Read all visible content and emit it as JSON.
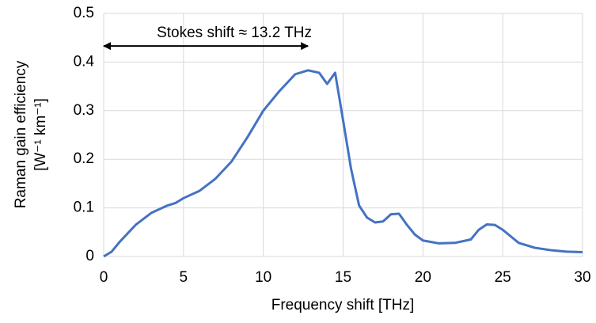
{
  "chart_data": {
    "type": "line",
    "x_label": "Frequency shift [THz]",
    "y_label": [
      "Raman gain efficiency",
      "[W⁻¹ km⁻¹]"
    ],
    "annotation": {
      "text": "Stokes shift ≈ 13.2 THz",
      "x_start": 0,
      "x_end": 12.8,
      "y": 0.433
    },
    "x": [
      0,
      0.5,
      1,
      2,
      3,
      4,
      4.5,
      5,
      6,
      7,
      8,
      9,
      10,
      11,
      12,
      12.8,
      13.5,
      14,
      14.5,
      15,
      15.5,
      16,
      16.5,
      17,
      17.5,
      18,
      18.5,
      19,
      19.5,
      20,
      21,
      22,
      23,
      23.5,
      24,
      24.5,
      25,
      26,
      27,
      28,
      29,
      30
    ],
    "series": [
      {
        "name": "Raman gain",
        "color": "#4472c4",
        "values": [
          0,
          0.01,
          0.03,
          0.065,
          0.09,
          0.105,
          0.11,
          0.12,
          0.135,
          0.16,
          0.195,
          0.245,
          0.3,
          0.34,
          0.375,
          0.383,
          0.378,
          0.355,
          0.378,
          0.28,
          0.18,
          0.105,
          0.08,
          0.07,
          0.072,
          0.087,
          0.088,
          0.065,
          0.045,
          0.033,
          0.027,
          0.028,
          0.035,
          0.055,
          0.066,
          0.065,
          0.055,
          0.028,
          0.018,
          0.013,
          0.01,
          0.009
        ]
      }
    ],
    "xlim": [
      0,
      30
    ],
    "xticks": [
      0,
      5,
      10,
      15,
      20,
      25,
      30
    ],
    "ylim": [
      0,
      0.5
    ],
    "yticks": [
      0,
      0.1,
      0.2,
      0.3,
      0.4,
      0.5
    ],
    "grid": true
  }
}
